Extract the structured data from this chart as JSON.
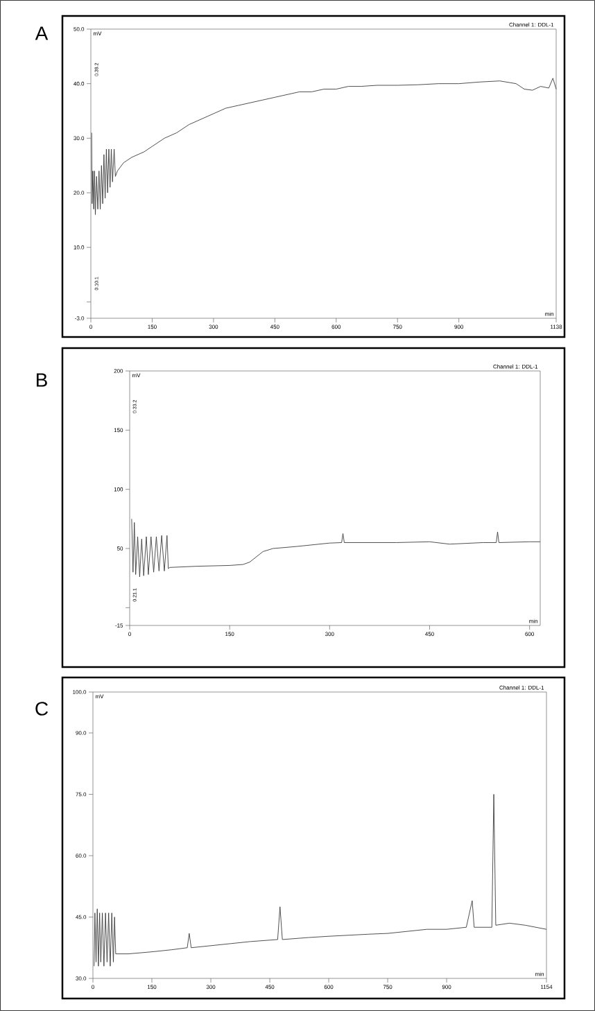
{
  "chart_data": [
    {
      "type": "line",
      "title": "Channel 1: DDL-1",
      "xlabel": "min",
      "ylabel": "mV",
      "color": "#3c3c3c",
      "annotations": [
        "A",
        "0.38.2",
        "0.10.1"
      ],
      "xlim": [
        0,
        1138
      ],
      "ylim": [
        -3,
        50
      ],
      "xticks": [
        0,
        150,
        300,
        450,
        600,
        750,
        900,
        1138
      ],
      "yticks": [
        {
          "value": -3,
          "label": "-3.0"
        },
        {
          "value": 0,
          "label": null
        },
        {
          "value": 10,
          "label": "10.0"
        },
        {
          "value": 20,
          "label": "20.0"
        },
        {
          "value": 30,
          "label": "30.0"
        },
        {
          "value": 40,
          "label": "40.0"
        },
        {
          "value": 50,
          "label": "50.0"
        }
      ],
      "x": [
        2,
        3,
        5,
        7,
        9,
        11,
        14,
        17,
        20,
        23,
        26,
        29,
        32,
        35,
        38,
        41,
        44,
        47,
        50,
        53,
        57,
        60,
        65,
        80,
        100,
        130,
        150,
        180,
        210,
        240,
        270,
        300,
        330,
        360,
        390,
        420,
        450,
        480,
        510,
        540,
        570,
        600,
        630,
        660,
        700,
        750,
        800,
        850,
        900,
        950,
        1000,
        1040,
        1060,
        1080,
        1100,
        1120,
        1130,
        1138
      ],
      "values": [
        31,
        18,
        24,
        17,
        24,
        16,
        23,
        17,
        24,
        17,
        25,
        18,
        27,
        19,
        28,
        20,
        28,
        21,
        28,
        22,
        28,
        23,
        24,
        25.5,
        26.5,
        27.5,
        28.5,
        30,
        31,
        32.5,
        33.5,
        34.5,
        35.5,
        36,
        36.5,
        37,
        37.5,
        38,
        38.5,
        38.5,
        39,
        39,
        39.5,
        39.5,
        39.7,
        39.7,
        39.8,
        40,
        40,
        40.3,
        40.5,
        40,
        39,
        38.8,
        39.5,
        39.2,
        41,
        39
      ]
    },
    {
      "type": "line",
      "title": "Channel 1: DDL-1",
      "xlabel": "min",
      "ylabel": "mV",
      "color": "#3c3c3c",
      "annotations": [
        "B",
        "0.33.2",
        "0.21.1"
      ],
      "xlim": [
        0,
        616
      ],
      "ylim": [
        -15,
        200
      ],
      "xticks": [
        0,
        150,
        300,
        450,
        600
      ],
      "yticks": [
        -15,
        {
          "value": 0,
          "label": null
        },
        50,
        100,
        150,
        200
      ],
      "x": [
        3,
        5,
        7,
        9,
        12,
        15,
        18,
        21,
        25,
        28,
        32,
        36,
        40,
        44,
        48,
        52,
        56,
        58,
        60,
        100,
        150,
        170,
        180,
        200,
        215,
        250,
        300,
        318,
        320,
        322,
        400,
        450,
        480,
        530,
        550,
        552,
        554,
        600,
        616
      ],
      "values": [
        75,
        30,
        72,
        28,
        60,
        26,
        58,
        27,
        60,
        28,
        60,
        30,
        60,
        31,
        61,
        31,
        61,
        33,
        34,
        35,
        35.7,
        36.5,
        38.5,
        47.4,
        50,
        51.7,
        54.6,
        55,
        62.6,
        55,
        55,
        55.7,
        53.7,
        55,
        55,
        64,
        55,
        55.7,
        55.7
      ]
    },
    {
      "type": "line",
      "title": "Channel 1: DDL-1",
      "xlabel": "min",
      "ylabel": "mV",
      "color": "#3c3c3c",
      "annotations": [
        "C"
      ],
      "xlim": [
        0,
        1154
      ],
      "ylim": [
        30,
        100
      ],
      "xticks": [
        0,
        150,
        300,
        450,
        600,
        750,
        900,
        1154
      ],
      "yticks": [
        {
          "value": 30,
          "label": "30.0"
        },
        {
          "value": 45,
          "label": "45.0"
        },
        {
          "value": 60,
          "label": "60.0"
        },
        {
          "value": 75,
          "label": "75.0"
        },
        {
          "value": 90,
          "label": "90.0"
        },
        {
          "value": 100,
          "label": "100.0"
        }
      ],
      "x": [
        3,
        5,
        8,
        11,
        14,
        17,
        20,
        24,
        28,
        32,
        36,
        40,
        44,
        48,
        52,
        55,
        58,
        90,
        150,
        200,
        240,
        245,
        250,
        300,
        350,
        400,
        470,
        476,
        482,
        550,
        600,
        700,
        750,
        800,
        850,
        900,
        950,
        965,
        970,
        1015,
        1020,
        1025,
        1060,
        1100,
        1154
      ],
      "values": [
        33,
        46,
        34,
        47,
        33,
        46,
        34,
        46,
        33,
        46,
        34,
        46,
        33,
        46,
        34,
        45,
        36,
        36,
        36.5,
        37,
        37.5,
        41,
        37.5,
        38,
        38.5,
        39,
        39.5,
        47.5,
        39.5,
        40,
        40.3,
        40.8,
        41,
        41.5,
        42,
        42,
        42.5,
        49,
        42.5,
        42.5,
        75,
        43,
        43.5,
        43,
        42
      ]
    }
  ]
}
